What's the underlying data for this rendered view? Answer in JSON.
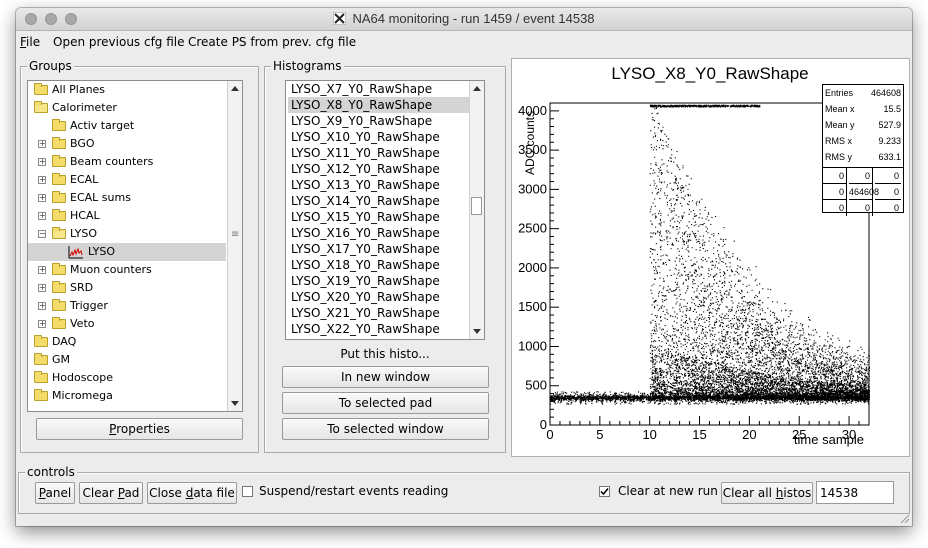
{
  "window": {
    "title": "NA64 monitoring  -  run 1459 / event 14538"
  },
  "menu": {
    "file": "File",
    "open_prev": "Open previous cfg file",
    "create_ps": "Create PS from prev. cfg file"
  },
  "groups": {
    "label": "Groups",
    "items": [
      {
        "label": "All Planes",
        "indent": 0,
        "expander": "none",
        "icon": "folder-icon"
      },
      {
        "label": "Calorimeter",
        "indent": 0,
        "expander": "none",
        "icon": "folder-open-icon"
      },
      {
        "label": "Activ target",
        "indent": 1,
        "expander": "none",
        "icon": "folder-icon"
      },
      {
        "label": "BGO",
        "indent": 1,
        "expander": "plus",
        "icon": "folder-icon"
      },
      {
        "label": "Beam counters",
        "indent": 1,
        "expander": "plus",
        "icon": "folder-icon"
      },
      {
        "label": "ECAL",
        "indent": 1,
        "expander": "plus",
        "icon": "folder-icon"
      },
      {
        "label": "ECAL sums",
        "indent": 1,
        "expander": "plus",
        "icon": "folder-icon"
      },
      {
        "label": "HCAL",
        "indent": 1,
        "expander": "plus",
        "icon": "folder-icon"
      },
      {
        "label": "LYSO",
        "indent": 1,
        "expander": "minus",
        "icon": "folder-open-icon"
      },
      {
        "label": "LYSO",
        "indent": 2,
        "expander": "none",
        "icon": "histogram-icon"
      },
      {
        "label": "Muon counters",
        "indent": 1,
        "expander": "plus",
        "icon": "folder-icon"
      },
      {
        "label": "SRD",
        "indent": 1,
        "expander": "plus",
        "icon": "folder-icon"
      },
      {
        "label": "Trigger",
        "indent": 1,
        "expander": "plus",
        "icon": "folder-icon"
      },
      {
        "label": "Veto",
        "indent": 1,
        "expander": "plus",
        "icon": "folder-icon"
      },
      {
        "label": "DAQ",
        "indent": 0,
        "expander": "none",
        "icon": "folder-icon"
      },
      {
        "label": "GM",
        "indent": 0,
        "expander": "none",
        "icon": "folder-icon"
      },
      {
        "label": "Hodoscope",
        "indent": 0,
        "expander": "none",
        "icon": "folder-icon"
      },
      {
        "label": "Micromega",
        "indent": 0,
        "expander": "none",
        "icon": "folder-icon"
      }
    ],
    "selected_index": 9,
    "properties_button": "Properties"
  },
  "histograms": {
    "label": "Histograms",
    "items": [
      "LYSO_X7_Y0_RawShape",
      "LYSO_X8_Y0_RawShape",
      "LYSO_X9_Y0_RawShape",
      "LYSO_X10_Y0_RawShape",
      "LYSO_X11_Y0_RawShape",
      "LYSO_X12_Y0_RawShape",
      "LYSO_X13_Y0_RawShape",
      "LYSO_X14_Y0_RawShape",
      "LYSO_X15_Y0_RawShape",
      "LYSO_X16_Y0_RawShape",
      "LYSO_X17_Y0_RawShape",
      "LYSO_X18_Y0_RawShape",
      "LYSO_X19_Y0_RawShape",
      "LYSO_X20_Y0_RawShape",
      "LYSO_X21_Y0_RawShape",
      "LYSO_X22_Y0_RawShape"
    ],
    "selected_index": 1,
    "put_label": "Put this histo...",
    "btn_new_window": "In new window",
    "btn_selected_pad": "To selected pad",
    "btn_selected_window": "To selected window"
  },
  "plot": {
    "title": "LYSO_X8_Y0_RawShape",
    "ylabel": "ADC counts",
    "xlabel": "time sample",
    "stats": [
      {
        "k": "Entries",
        "v": "464608"
      },
      {
        "k": "Mean x",
        "v": "15.5"
      },
      {
        "k": "Mean y",
        "v": "527.9"
      },
      {
        "k": "RMS x",
        "v": "9.233"
      },
      {
        "k": "RMS y",
        "v": "633.1"
      }
    ],
    "grid": [
      [
        "0",
        "0",
        "0"
      ],
      [
        "0",
        "464608",
        "0"
      ],
      [
        "0",
        "0",
        "0"
      ]
    ]
  },
  "chart_data": {
    "type": "scatter",
    "title": "LYSO_X8_Y0_RawShape",
    "xlabel": "time sample",
    "ylabel": "ADC counts",
    "xlim": [
      0,
      32
    ],
    "ylim": [
      0,
      4100
    ],
    "x_ticks": [
      0,
      5,
      10,
      15,
      20,
      25,
      30
    ],
    "y_ticks": [
      0,
      500,
      1000,
      1500,
      2000,
      2500,
      3000,
      3500,
      4000
    ],
    "x_tick_labels": [
      "0",
      "5",
      "10",
      "15",
      "20",
      "25",
      "30"
    ],
    "y_tick_labels": [
      "0",
      "500",
      "1000",
      "1500",
      "2000",
      "2500",
      "3000",
      "3500",
      "4000"
    ],
    "baseline_adc": 350,
    "saturation_adc": 4080,
    "signal_start_sample": 10
  },
  "controls": {
    "label": "controls",
    "panel": "Panel",
    "clear_pad": "Clear Pad",
    "close_data": "Close data file",
    "suspend": "Suspend/restart events reading",
    "clear_at_new_run": "Clear at new run",
    "clear_all": "Clear all histos",
    "event_value": "14538"
  }
}
